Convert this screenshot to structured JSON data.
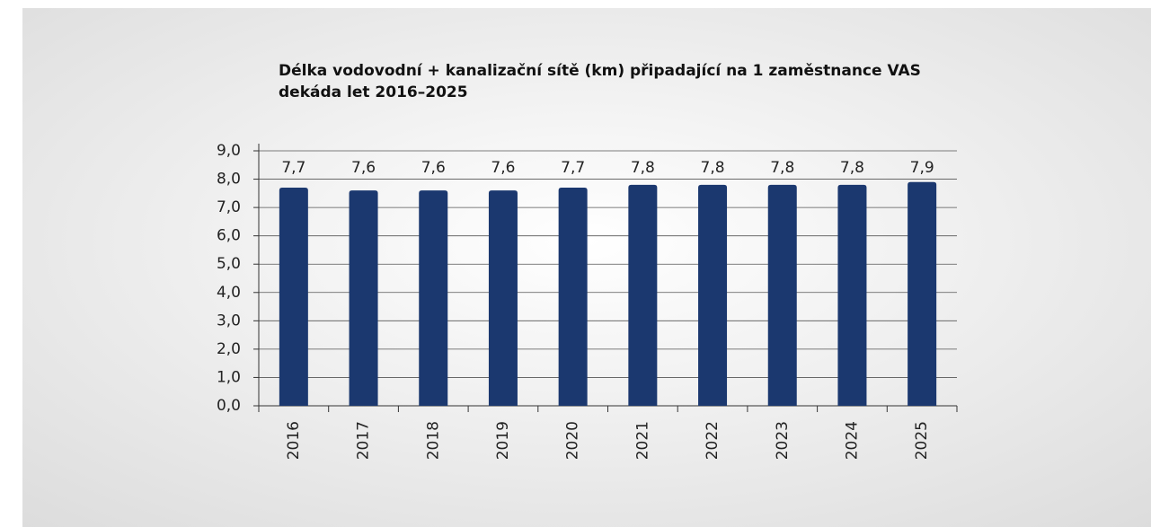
{
  "chart_data": {
    "type": "bar",
    "title": "Délka vodovodní + kanalizační sítě (km) připadající na 1 zaměstnance VAS",
    "subtitle": "dekáda let 2016–2025",
    "categories": [
      "2016",
      "2017",
      "2018",
      "2019",
      "2020",
      "2021",
      "2022",
      "2023",
      "2024",
      "2025"
    ],
    "values": [
      7.7,
      7.6,
      7.6,
      7.6,
      7.7,
      7.8,
      7.8,
      7.8,
      7.8,
      7.9
    ],
    "value_labels": [
      "7,7",
      "7,6",
      "7,6",
      "7,6",
      "7,7",
      "7,8",
      "7,8",
      "7,8",
      "7,8",
      "7,9"
    ],
    "color": "#1b386f",
    "ylim": [
      0,
      9
    ],
    "yticks": [
      {
        "value": 0,
        "label": "0,0"
      },
      {
        "value": 1,
        "label": "1,0"
      },
      {
        "value": 2,
        "label": "2,0"
      },
      {
        "value": 3,
        "label": "3,0"
      },
      {
        "value": 4,
        "label": "4,0"
      },
      {
        "value": 5,
        "label": "5,0"
      },
      {
        "value": 6,
        "label": "6,0"
      },
      {
        "value": 7,
        "label": "7,0"
      },
      {
        "value": 8,
        "label": "8,0"
      },
      {
        "value": 9,
        "label": "9,0"
      }
    ],
    "grid": true
  }
}
